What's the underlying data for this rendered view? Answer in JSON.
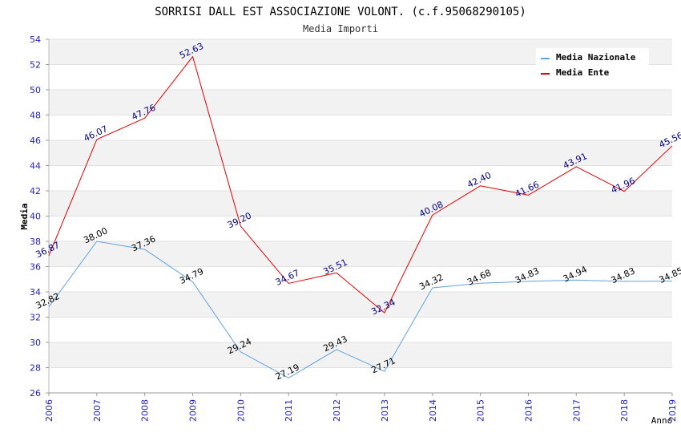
{
  "chart_data": {
    "type": "line",
    "title": "SORRISI DALL EST ASSOCIAZIONE VOLONT. (c.f.95068290105)",
    "subtitle": "Media Importi",
    "xlabel": "Anno",
    "ylabel": "Media",
    "categories": [
      "2006",
      "2007",
      "2008",
      "2009",
      "2010",
      "2011",
      "2012",
      "2013",
      "2014",
      "2015",
      "2016",
      "2017",
      "2018",
      "2019"
    ],
    "ylim": [
      26,
      54
    ],
    "yticks": [
      "26",
      "28",
      "30",
      "32",
      "34",
      "36",
      "38",
      "40",
      "42",
      "44",
      "46",
      "48",
      "50",
      "52",
      "54"
    ],
    "grid": "horizontal alternating bands",
    "legend_position": "top-right",
    "series": [
      {
        "name": "Media Nazionale",
        "color": "#5fa2e0",
        "label_color": "#000000",
        "values": [
          32.82,
          38.0,
          37.36,
          34.79,
          29.24,
          27.19,
          29.43,
          27.71,
          34.32,
          34.68,
          34.83,
          34.94,
          34.83,
          34.85
        ],
        "labels": [
          "32.82",
          "38.00",
          "37.36",
          "34.79",
          "29.24",
          "27.19",
          "29.43",
          "27.71",
          "34.32",
          "34.68",
          "34.83",
          "34.94",
          "34.83",
          "34.85"
        ]
      },
      {
        "name": "Media Ente",
        "color": "#e00000",
        "label_color": "#000080",
        "values": [
          36.87,
          46.07,
          47.76,
          52.63,
          39.2,
          34.67,
          35.51,
          32.34,
          40.08,
          42.4,
          41.66,
          43.91,
          41.96,
          45.56
        ],
        "labels": [
          "36.87",
          "46.07",
          "47.76",
          "52.63",
          "39.20",
          "34.67",
          "35.51",
          "32.34",
          "40.08",
          "42.40",
          "41.66",
          "43.91",
          "41.96",
          "45.56"
        ]
      }
    ]
  }
}
